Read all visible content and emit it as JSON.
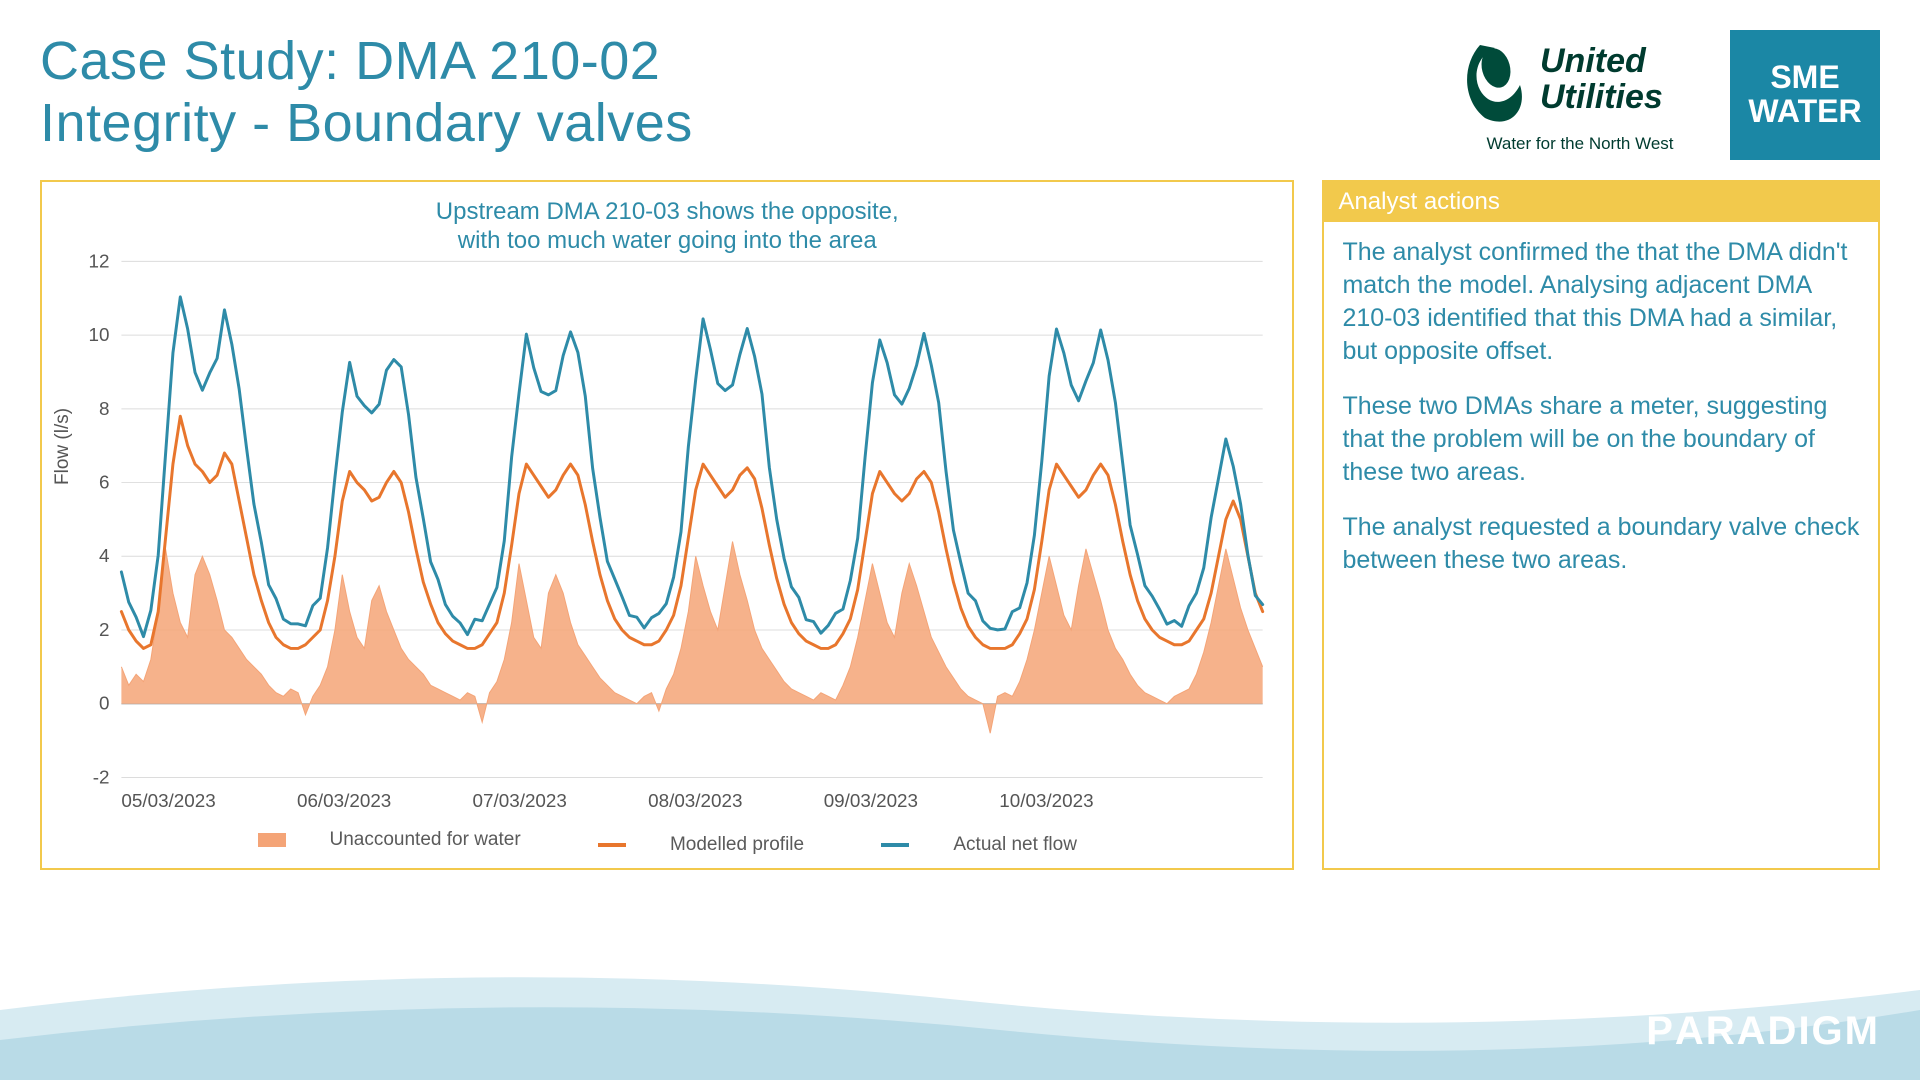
{
  "title": {
    "line1": "Case Study: DMA 210-02",
    "line2": "Integrity - Boundary valves",
    "color": "#2e8ba8",
    "fontsize": 54
  },
  "logos": {
    "uu": {
      "name_line1": "United",
      "name_line2": "Utilities",
      "tagline": "Water for the North West",
      "swoosh_color": "#004b3a",
      "text_color": "#003b2f"
    },
    "sme": {
      "line1": "SME",
      "line2": "WATER",
      "bg": "#1b87a5",
      "fg": "#ffffff"
    }
  },
  "chart": {
    "type": "line+area",
    "caption_line1": "Upstream DMA 210-03 shows the opposite,",
    "caption_line2": "with too much water going into the area",
    "caption_color": "#2e8ba8",
    "border_color": "#f2c94c",
    "background": "#ffffff",
    "grid_color": "#dcdcdc",
    "ylabel": "Flow (l/s)",
    "label_fontsize": 19,
    "ylim": [
      -2,
      12
    ],
    "yticks": [
      -2,
      0,
      2,
      4,
      6,
      8,
      10,
      12
    ],
    "x_categories": [
      "05/03/2023",
      "06/03/2023",
      "07/03/2023",
      "08/03/2023",
      "09/03/2023",
      "10/03/2023"
    ],
    "x_days_total": 6.5,
    "series": {
      "unaccounted": {
        "label": "Unaccounted for water",
        "type": "area",
        "color": "#f4a477",
        "values": [
          1.0,
          0.5,
          0.8,
          0.6,
          1.2,
          2.5,
          4.2,
          3.0,
          2.2,
          1.8,
          3.5,
          4.0,
          3.5,
          2.8,
          2.0,
          1.8,
          1.5,
          1.2,
          1.0,
          0.8,
          0.5,
          0.3,
          0.2,
          0.4,
          0.3,
          -0.3,
          0.2,
          0.5,
          1.0,
          2.0,
          3.5,
          2.5,
          1.8,
          1.5,
          2.8,
          3.2,
          2.5,
          2.0,
          1.5,
          1.2,
          1.0,
          0.8,
          0.5,
          0.4,
          0.3,
          0.2,
          0.1,
          0.3,
          0.2,
          -0.5,
          0.3,
          0.6,
          1.2,
          2.2,
          3.8,
          2.8,
          1.8,
          1.5,
          3.0,
          3.5,
          3.0,
          2.2,
          1.6,
          1.3,
          1.0,
          0.7,
          0.5,
          0.3,
          0.2,
          0.1,
          0.0,
          0.2,
          0.3,
          -0.2,
          0.4,
          0.8,
          1.5,
          2.5,
          4.0,
          3.2,
          2.5,
          2.0,
          3.2,
          4.4,
          3.5,
          2.8,
          2.0,
          1.5,
          1.2,
          0.9,
          0.6,
          0.4,
          0.3,
          0.2,
          0.1,
          0.3,
          0.2,
          0.1,
          0.5,
          1.0,
          1.8,
          2.8,
          3.8,
          3.0,
          2.2,
          1.8,
          3.0,
          3.8,
          3.2,
          2.5,
          1.8,
          1.4,
          1.0,
          0.7,
          0.4,
          0.2,
          0.1,
          0.0,
          -0.8,
          0.2,
          0.3,
          0.2,
          0.6,
          1.2,
          2.0,
          3.0,
          4.0,
          3.2,
          2.4,
          2.0,
          3.2,
          4.2,
          3.5,
          2.8,
          2.0,
          1.5,
          1.2,
          0.8,
          0.5,
          0.3,
          0.2,
          0.1,
          0.0,
          0.2,
          0.3,
          0.4,
          0.8,
          1.4,
          2.2,
          3.2,
          4.2,
          3.4,
          2.6,
          2.0,
          1.5,
          1.0
        ]
      },
      "modelled": {
        "label": "Modelled profile",
        "type": "line",
        "color": "#e8762d",
        "width": 3,
        "values": [
          2.5,
          2.0,
          1.7,
          1.5,
          1.6,
          2.5,
          4.5,
          6.5,
          7.8,
          7.0,
          6.5,
          6.3,
          6.0,
          6.2,
          6.8,
          6.5,
          5.5,
          4.5,
          3.5,
          2.8,
          2.2,
          1.8,
          1.6,
          1.5,
          1.5,
          1.6,
          1.8,
          2.0,
          2.8,
          4.0,
          5.5,
          6.3,
          6.0,
          5.8,
          5.5,
          5.6,
          6.0,
          6.3,
          6.0,
          5.2,
          4.2,
          3.3,
          2.7,
          2.2,
          1.9,
          1.7,
          1.6,
          1.5,
          1.5,
          1.6,
          1.9,
          2.2,
          3.0,
          4.3,
          5.7,
          6.5,
          6.2,
          5.9,
          5.6,
          5.8,
          6.2,
          6.5,
          6.2,
          5.4,
          4.4,
          3.5,
          2.8,
          2.3,
          2.0,
          1.8,
          1.7,
          1.6,
          1.6,
          1.7,
          2.0,
          2.4,
          3.2,
          4.5,
          5.8,
          6.5,
          6.2,
          5.9,
          5.6,
          5.8,
          6.2,
          6.4,
          6.1,
          5.3,
          4.3,
          3.4,
          2.7,
          2.2,
          1.9,
          1.7,
          1.6,
          1.5,
          1.5,
          1.6,
          1.9,
          2.3,
          3.1,
          4.4,
          5.7,
          6.3,
          6.0,
          5.7,
          5.5,
          5.7,
          6.1,
          6.3,
          6.0,
          5.2,
          4.2,
          3.3,
          2.6,
          2.1,
          1.8,
          1.6,
          1.5,
          1.5,
          1.5,
          1.6,
          1.9,
          2.3,
          3.1,
          4.4,
          5.8,
          6.5,
          6.2,
          5.9,
          5.6,
          5.8,
          6.2,
          6.5,
          6.2,
          5.4,
          4.4,
          3.5,
          2.8,
          2.3,
          2.0,
          1.8,
          1.7,
          1.6,
          1.6,
          1.7,
          2.0,
          2.3,
          3.0,
          4.0,
          5.0,
          5.5,
          5.0,
          4.0,
          3.0,
          2.5
        ]
      },
      "actual": {
        "label": "Actual net flow",
        "type": "line",
        "color": "#2e8ba8",
        "width": 3,
        "values": [
          3.5,
          2.8,
          2.3,
          2.0,
          2.4,
          4.0,
          6.8,
          9.5,
          11.2,
          10.0,
          9.0,
          8.5,
          9.0,
          9.5,
          10.5,
          9.8,
          8.5,
          7.0,
          5.5,
          4.2,
          3.3,
          2.8,
          2.4,
          2.2,
          2.0,
          2.2,
          2.6,
          3.0,
          4.2,
          6.0,
          8.0,
          9.2,
          8.5,
          8.0,
          7.8,
          8.2,
          9.0,
          9.5,
          9.0,
          7.8,
          6.2,
          5.0,
          4.0,
          3.2,
          2.7,
          2.4,
          2.2,
          2.0,
          2.1,
          2.3,
          2.7,
          3.2,
          4.5,
          6.5,
          8.5,
          10.0,
          9.2,
          8.5,
          8.2,
          8.6,
          9.4,
          10.2,
          9.5,
          8.2,
          6.5,
          5.0,
          4.0,
          3.3,
          2.8,
          2.5,
          2.3,
          2.2,
          2.2,
          2.4,
          2.8,
          3.4,
          4.8,
          6.8,
          8.8,
          10.5,
          9.6,
          8.8,
          8.3,
          8.7,
          9.5,
          10.2,
          9.5,
          8.2,
          6.5,
          5.0,
          4.0,
          3.2,
          2.7,
          2.4,
          2.2,
          2.0,
          2.1,
          2.3,
          2.7,
          3.3,
          4.6,
          6.6,
          8.6,
          10.0,
          9.2,
          8.5,
          8.0,
          8.5,
          9.3,
          10.0,
          9.3,
          8.0,
          6.3,
          4.8,
          3.8,
          3.1,
          2.6,
          2.3,
          2.1,
          2.0,
          2.1,
          2.3,
          2.7,
          3.3,
          4.6,
          6.6,
          8.7,
          10.3,
          9.5,
          8.7,
          8.2,
          8.6,
          9.4,
          10.1,
          9.4,
          8.1,
          6.4,
          5.0,
          4.0,
          3.3,
          2.8,
          2.5,
          2.3,
          2.2,
          2.2,
          2.5,
          3.0,
          3.8,
          5.0,
          6.2,
          7.0,
          6.5,
          5.5,
          4.0,
          3.0,
          2.5
        ]
      }
    },
    "legend_fontsize": 19
  },
  "actions": {
    "header": "Analyst actions",
    "header_bg": "#f2c94c",
    "header_fg": "#ffffff",
    "border_color": "#f2c94c",
    "text_color": "#2e8ba8",
    "fontsize": 25,
    "paragraphs": [
      "The analyst confirmed the that the DMA didn't match the model. Analysing adjacent DMA 210-03 identified that this DMA had a similar, but opposite offset.",
      "These two DMAs share a meter, suggesting that the problem will be on the boundary of these two areas.",
      "The analyst requested a boundary valve check between these two areas."
    ]
  },
  "footer": {
    "wave_color_light": "#d7ebf2",
    "wave_color_mid": "#b9dbe7",
    "brand": "PARADIGM",
    "brand_color": "#ffffff"
  }
}
